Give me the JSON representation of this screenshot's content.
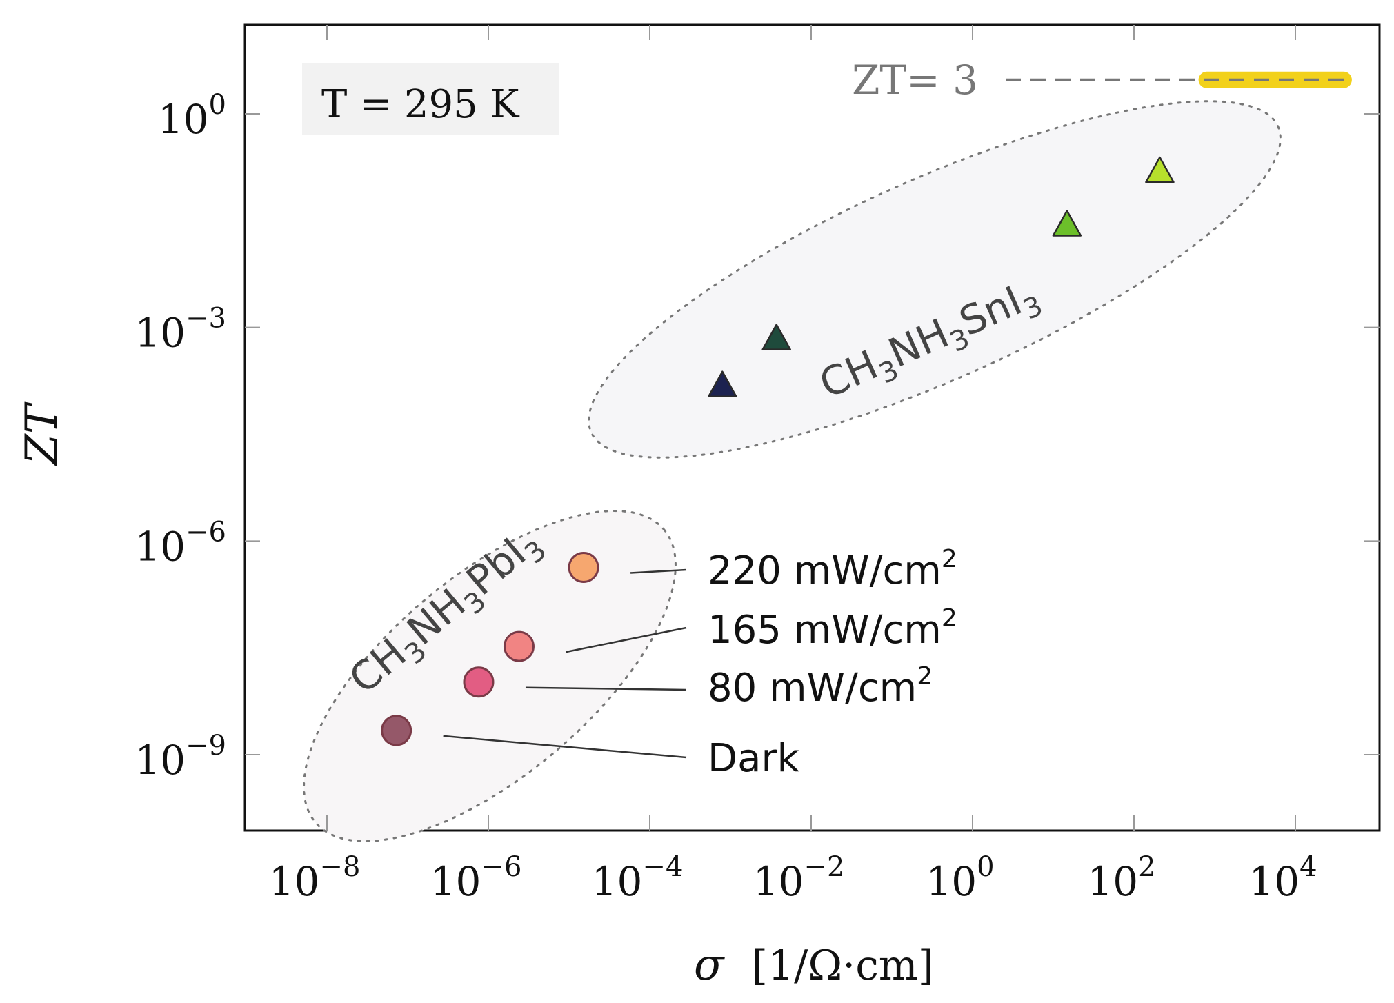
{
  "chart_data": {
    "type": "scatter",
    "xscale": "log",
    "yscale": "log",
    "xlim_exp": [
      -9,
      5
    ],
    "ylim_exp": [
      -10,
      1.3
    ],
    "xticks": [
      {
        "exp": -8,
        "base": "10",
        "sup": "−8"
      },
      {
        "exp": -6,
        "base": "10",
        "sup": "−6"
      },
      {
        "exp": -4,
        "base": "10",
        "sup": "−4"
      },
      {
        "exp": -2,
        "base": "10",
        "sup": "−2"
      },
      {
        "exp": 0,
        "base": "10",
        "sup": "0"
      },
      {
        "exp": 2,
        "base": "10",
        "sup": "2"
      },
      {
        "exp": 4,
        "base": "10",
        "sup": "4"
      }
    ],
    "yticks": [
      {
        "exp": 0,
        "base": "10",
        "sup": "0"
      },
      {
        "exp": -3,
        "base": "10",
        "sup": "−3"
      },
      {
        "exp": -6,
        "base": "10",
        "sup": "−6"
      },
      {
        "exp": -9,
        "base": "10",
        "sup": "−9"
      }
    ],
    "xlabel": {
      "symbol": "σ",
      "unit": "[1/Ω·cm]"
    },
    "ylabel": "ZT",
    "temperature_box": "T = 295 K",
    "reference_line": {
      "label": "ZT= 3",
      "zt_exp": 0.477,
      "highlight_color": "#f2d11b",
      "highlight_x_exp": [
        2.8,
        4.7
      ]
    },
    "series": [
      {
        "name": "CH3NH3PbI3",
        "label_base": [
          "CH",
          "3",
          "NH",
          "3",
          "PbI",
          "3"
        ],
        "marker": "circle",
        "points": [
          {
            "x_exp": -7.14,
            "y_exp": -8.66,
            "color": "#8c4a5c",
            "callout": "Dark"
          },
          {
            "x_exp": -6.12,
            "y_exp": -7.98,
            "color": "#e04f78",
            "callout": "80   mW/cm",
            "callout_sup": "2"
          },
          {
            "x_exp": -5.62,
            "y_exp": -7.48,
            "color": "#f07a78",
            "callout": "165 mW/cm",
            "callout_sup": "2"
          },
          {
            "x_exp": -4.82,
            "y_exp": -6.37,
            "color": "#f5a063",
            "callout": "220 mW/cm",
            "callout_sup": "2"
          }
        ]
      },
      {
        "name": "CH3NH3SnI3",
        "label_base": [
          "CH",
          "3",
          "NH",
          "3",
          "SnI",
          "3"
        ],
        "marker": "triangle",
        "points": [
          {
            "x_exp": -3.1,
            "y_exp": -3.83,
            "color": "#1c2250"
          },
          {
            "x_exp": -2.43,
            "y_exp": -3.17,
            "color": "#1f4b3c"
          },
          {
            "x_exp": 1.17,
            "y_exp": -1.57,
            "color": "#6cbf2a"
          },
          {
            "x_exp": 2.32,
            "y_exp": -0.82,
            "color": "#b7e02c"
          }
        ]
      }
    ]
  }
}
